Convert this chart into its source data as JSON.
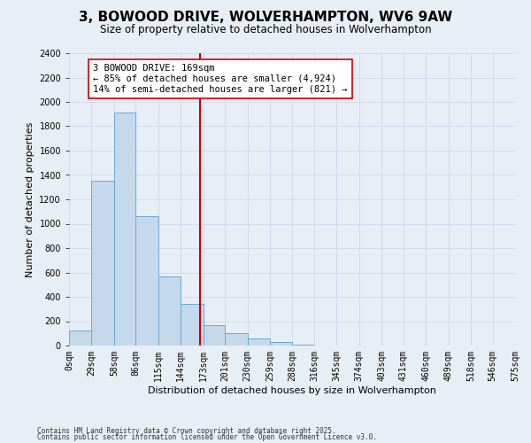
{
  "title": "3, BOWOOD DRIVE, WOLVERHAMPTON, WV6 9AW",
  "subtitle": "Size of property relative to detached houses in Wolverhampton",
  "xlabel": "Distribution of detached houses by size in Wolverhampton",
  "ylabel": "Number of detached properties",
  "footnote1": "Contains HM Land Registry data © Crown copyright and database right 2025.",
  "footnote2": "Contains public sector information licensed under the Open Government Licence v3.0.",
  "bin_labels": [
    "0sqm",
    "29sqm",
    "58sqm",
    "86sqm",
    "115sqm",
    "144sqm",
    "173sqm",
    "201sqm",
    "230sqm",
    "259sqm",
    "288sqm",
    "316sqm",
    "345sqm",
    "374sqm",
    "403sqm",
    "431sqm",
    "460sqm",
    "489sqm",
    "518sqm",
    "546sqm",
    "575sqm"
  ],
  "bin_edges": [
    0,
    29,
    58,
    86,
    115,
    144,
    173,
    201,
    230,
    259,
    288,
    316,
    345,
    374,
    403,
    431,
    460,
    489,
    518,
    546,
    575
  ],
  "bar_heights": [
    125,
    1350,
    1910,
    1060,
    570,
    340,
    165,
    105,
    60,
    30,
    10,
    0,
    0,
    0,
    0,
    0,
    0,
    0,
    0,
    0
  ],
  "bar_color": "#c5d9ec",
  "bar_edge_color": "#6aaad4",
  "property_size": 169,
  "marker_line_color": "#cc0000",
  "annotation_line1": "3 BOWOOD DRIVE: 169sqm",
  "annotation_line2": "← 85% of detached houses are smaller (4,924)",
  "annotation_line3": "14% of semi-detached houses are larger (821) →",
  "annotation_box_color": "#ffffff",
  "annotation_box_edge": "#cc0000",
  "ylim": [
    0,
    2400
  ],
  "yticks": [
    0,
    200,
    400,
    600,
    800,
    1000,
    1200,
    1400,
    1600,
    1800,
    2000,
    2200,
    2400
  ],
  "grid_color": "#d0d8e8",
  "background_color": "#e8eef5",
  "plot_background": "#e8eef5",
  "title_fontsize": 11,
  "subtitle_fontsize": 8.5,
  "axis_label_fontsize": 8,
  "tick_fontsize": 7,
  "annotation_fontsize": 7.5,
  "footnote_fontsize": 5.5
}
